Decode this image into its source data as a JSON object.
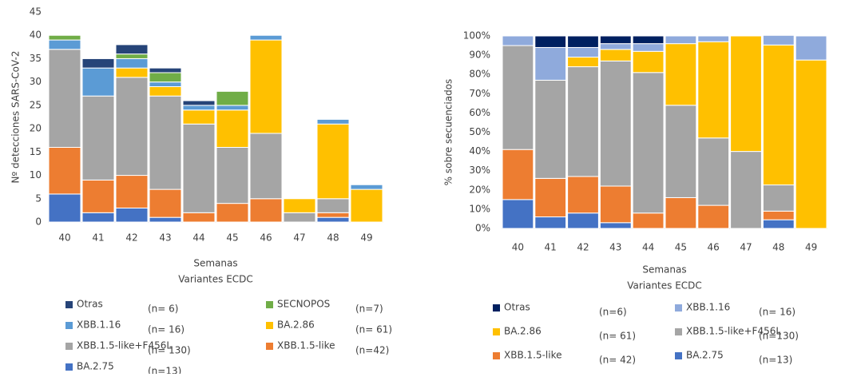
{
  "chart_data": [
    {
      "type": "stacked_bar",
      "y_label": "Nº detecciones SARS-CoV-2",
      "x_label": "Semanas",
      "legend_title": "Variantes ECDC",
      "categories": [
        "40",
        "41",
        "42",
        "43",
        "44",
        "45",
        "46",
        "47",
        "48",
        "49"
      ],
      "ylim": [
        0,
        45
      ],
      "yticks": [
        0,
        5,
        10,
        15,
        20,
        25,
        30,
        35,
        40,
        45
      ],
      "series": [
        {
          "name": "Otras",
          "n_label": "(n= 6)",
          "color": "#264478",
          "values": [
            0,
            2,
            2,
            1,
            1,
            0,
            0,
            0,
            0,
            0
          ]
        },
        {
          "name": "SECNOPOS",
          "n_label": "(n=7)",
          "color": "#70ad47",
          "values": [
            1,
            0,
            1,
            2,
            0,
            3,
            0,
            0,
            0,
            0
          ]
        },
        {
          "name": "XBB.1.16",
          "n_label": "(n= 16)",
          "color": "#5b9bd5",
          "values": [
            2,
            6,
            2,
            1,
            1,
            1,
            1,
            0,
            1,
            1
          ]
        },
        {
          "name": "BA.2.86",
          "n_label": "(n= 61)",
          "color": "#ffc000",
          "values": [
            0,
            0,
            2,
            2,
            3,
            8,
            20,
            3,
            16,
            7
          ]
        },
        {
          "name": "XBB.1.5-like+F456L",
          "n_label": "(n= 130)",
          "color": "#a5a5a5",
          "values": [
            21,
            18,
            21,
            20,
            19,
            12,
            14,
            2,
            3,
            0
          ]
        },
        {
          "name": "XBB.1.5-like",
          "n_label": "(n=42)",
          "color": "#ed7d31",
          "values": [
            10,
            7,
            7,
            6,
            2,
            4,
            5,
            0,
            1,
            0
          ]
        },
        {
          "name": "BA.2.75",
          "n_label": "(n=13)",
          "color": "#4472c4",
          "values": [
            6,
            2,
            3,
            1,
            0,
            0,
            0,
            0,
            1,
            0
          ]
        }
      ]
    },
    {
      "type": "stacked_bar",
      "y_label": "% sobre secuenciados",
      "x_label": "Semanas",
      "legend_title": "Variantes ECDC",
      "categories": [
        "40",
        "41",
        "42",
        "43",
        "44",
        "45",
        "46",
        "47",
        "48",
        "49"
      ],
      "ylim": [
        0,
        100
      ],
      "yticks": [
        {
          "value": 0,
          "label": "0%"
        },
        {
          "value": 10,
          "label": "10%"
        },
        {
          "value": 20,
          "label": "20%"
        },
        {
          "value": 30,
          "label": "30%"
        },
        {
          "value": 40,
          "label": "40%"
        },
        {
          "value": 50,
          "label": "50%"
        },
        {
          "value": 60,
          "label": "60%"
        },
        {
          "value": 70,
          "label": "70%"
        },
        {
          "value": 80,
          "label": "80%"
        },
        {
          "value": 90,
          "label": "90%"
        },
        {
          "value": 100,
          "label": "100%"
        }
      ],
      "series": [
        {
          "name": "Otras",
          "n_label": "(n=6)",
          "color": "#002060",
          "values": [
            0,
            6,
            6,
            4,
            4,
            0,
            0,
            0,
            0,
            0
          ]
        },
        {
          "name": "XBB.1.16",
          "n_label": "(n= 16)",
          "color": "#8faadc",
          "values": [
            5,
            17,
            5,
            3,
            4,
            4,
            3,
            0,
            5,
            12.5
          ]
        },
        {
          "name": "BA.2.86",
          "n_label": "(n= 61)",
          "color": "#ffc000",
          "values": [
            0,
            0,
            5,
            6,
            11,
            32,
            50,
            60,
            72.7,
            87.5
          ]
        },
        {
          "name": "XBB.1.5-like+F456L",
          "n_label": "(n=130)",
          "color": "#a5a5a5",
          "values": [
            54,
            51,
            57,
            65,
            73,
            48,
            35,
            40,
            13.6,
            0
          ]
        },
        {
          "name": "XBB.1.5-like",
          "n_label": "(n= 42)",
          "color": "#ed7d31",
          "values": [
            26,
            20,
            19,
            19,
            8,
            16,
            12,
            0,
            4.5,
            0
          ]
        },
        {
          "name": "BA.2.75",
          "n_label": "(n=13)",
          "color": "#4472c4",
          "values": [
            15,
            6,
            8,
            3,
            0,
            0,
            0,
            0,
            4.5,
            0
          ]
        }
      ]
    }
  ]
}
